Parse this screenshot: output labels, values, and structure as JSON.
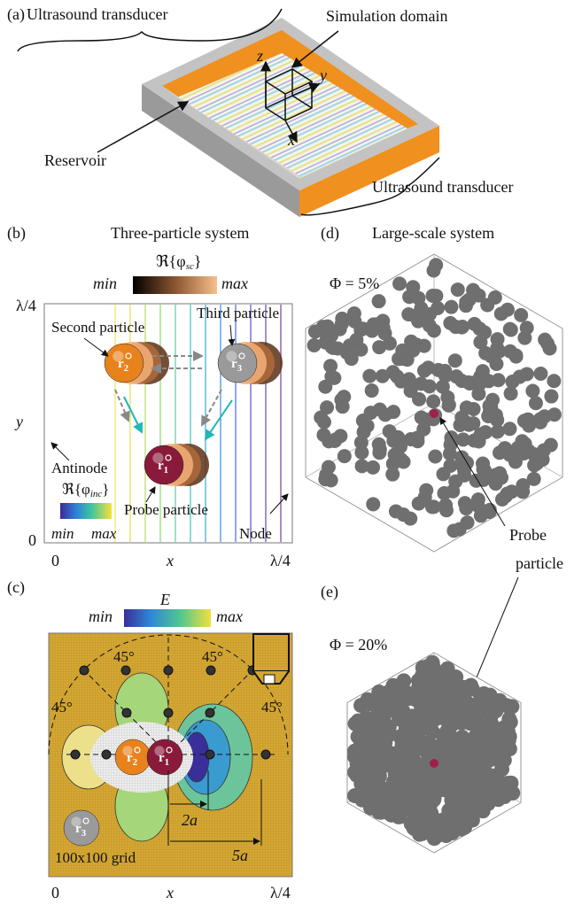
{
  "panel_a": {
    "tag": "(a)",
    "transducer_top": "Ultrasound transducer",
    "domain": "Simulation domain",
    "reservoir": "Reservoir",
    "transducer_bottom": "Ultrasound transducer",
    "axis_z": "z",
    "axis_y": "y",
    "axis_x": "x"
  },
  "panel_b": {
    "tag": "(b)",
    "title": "Three-particle system",
    "sc_bar": {
      "head": "ℜ{φ",
      "sub": "sc",
      "tail": "}",
      "min": "min",
      "max": "max"
    },
    "y_top": "λ/4",
    "y_zero": "0",
    "y_label": "y",
    "x_zero": "0",
    "x_label": "x",
    "x_end": "λ/4",
    "second": "Second particle",
    "third": "Third particle",
    "antinode": "Antinode",
    "probe": "Probe particle",
    "node": "Node",
    "inc_bar": {
      "head": "ℜ{φ",
      "sub": "inc",
      "tail": "}",
      "min": "min",
      "max": "max"
    },
    "particles": [
      {
        "symbol": "r",
        "index": "2"
      },
      {
        "symbol": "r",
        "index": "3"
      },
      {
        "symbol": "r",
        "index": "1"
      }
    ]
  },
  "panel_c": {
    "tag": "(c)",
    "e_bar": {
      "label": "E",
      "min": "min",
      "max": "max"
    },
    "angles": [
      "45°",
      "45°",
      "45°",
      "45°"
    ],
    "dist_small": "2a",
    "dist_large": "5a",
    "grid": "100x100 grid",
    "x_zero": "0",
    "x_label": "x",
    "x_end": "λ/4",
    "particles": [
      {
        "symbol": "r",
        "index": "2"
      },
      {
        "symbol": "r",
        "index": "1"
      },
      {
        "symbol": "r",
        "index": "3"
      }
    ]
  },
  "panel_d": {
    "tag": "(d)",
    "title": "Large-scale system",
    "fraction": "Φ = 5%",
    "probe_1": "Probe",
    "probe_2": "particle"
  },
  "panel_e": {
    "tag": "(e)",
    "fraction": "Φ = 20%"
  }
}
